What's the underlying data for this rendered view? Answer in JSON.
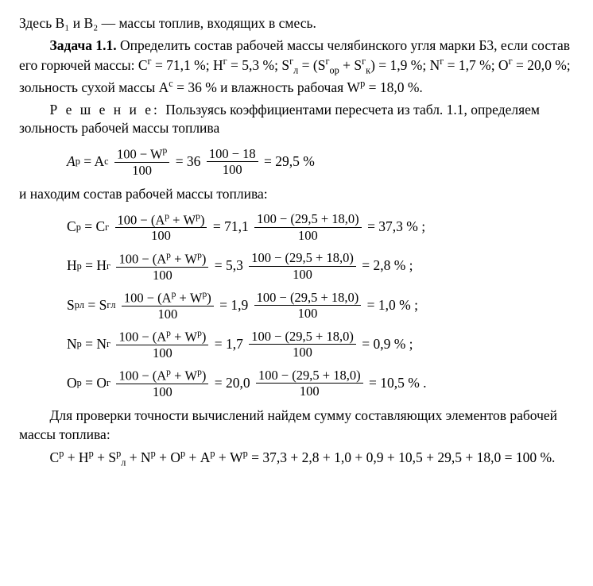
{
  "intro": "Здесь B₁ и B₂ — массы топлив, входящих в смесь.",
  "task": {
    "label": "Задача 1.1.",
    "text1": " Определить состав рабочей массы челябинского угля марки Б3, если состав его горючей массы: C",
    "Cg_eq": " = 71,1 %; H",
    "Hg_eq": " = 5,3 %;  S",
    "Sg_sub": "л",
    "Sg_paren_open": " = (S",
    "Sg_or_sub": "ор",
    "Sg_plus": " + S",
    "Sg_k_sub": "к",
    "Sg_eq_val": ") = 1,9 %;  N",
    "Ng_eq": " = 1,7 %; O",
    "Og_eq": " = 20,0 %; зольность сухой массы A",
    "Ac_sup": "с",
    "Ac_eq": " = 36 % и влажность рабочая W",
    "Wp_sup": "р",
    "Wp_eq": " = 18,0 %."
  },
  "solution": {
    "label": "Р е ш е н и е: ",
    "text": "Пользуясь коэффициентами пересчета из табл. 1.1, определяем зольность рабочей массы топлива"
  },
  "eq_A": {
    "lhs": "A",
    "lhs_sup": "р",
    "eq": " = A",
    "rhs_sup": "с",
    "frac1_num": "100 − W",
    "frac1_num_sup": "р",
    "frac_den": "100",
    "after1": " = 36 ",
    "frac2_num": "100 − 18",
    "result": " = 29,5 %"
  },
  "mid_text": "и находим состав рабочей массы топлива:",
  "generic_frac_num_a": "100 − (A",
  "generic_frac_num_b": " + W",
  "generic_frac_num_c": ")",
  "generic_frac_den": "100",
  "generic_frac2_num": "100 − (29,5 + 18,0)",
  "rows": {
    "C": {
      "sym": "C",
      "sup_p": "р",
      "sup_g": "г",
      "val1": " = 71,1 ",
      "res": " = 37,3 % ;"
    },
    "H": {
      "sym": "H",
      "sup_p": "р",
      "sup_g": "г",
      "val1": " = 5,3 ",
      "res": " = 2,8 % ;"
    },
    "S": {
      "sym": "S",
      "sub": "л",
      "sup_p": "р",
      "sup_g": "г",
      "val1": " = 1,9 ",
      "res": " = 1,0 % ;"
    },
    "N": {
      "sym": "N",
      "sup_p": "р",
      "sup_g": "г",
      "val1": " = 1,7 ",
      "res": " = 0,9 % ;"
    },
    "O": {
      "sym": "O",
      "sup_p": "р",
      "sup_g": "г",
      "val1": " = 20,0 ",
      "res": " = 10,5 % ."
    }
  },
  "check": {
    "text": "Для проверки точности вычислений найдем сумму составляющих элементов рабочей массы топлива:",
    "sum_line": "C",
    "sum_H": " + H",
    "sum_S": " + S",
    "sum_S_sub": "л",
    "sum_N": " + N",
    "sum_O": " + O",
    "sum_A": " + A",
    "sum_W": " + W",
    "sum_eq": " = 37,3 + 2,8 + 1,0 + 0,9 + 10,5 + 29,5 + 18,0 = 100 %."
  },
  "sup_g": "г",
  "sup_p": "р"
}
